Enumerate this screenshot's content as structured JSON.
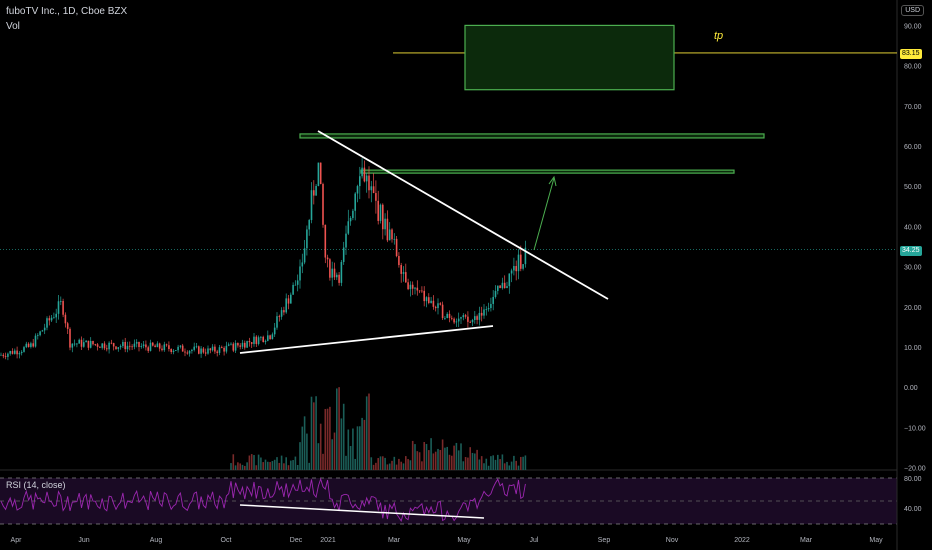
{
  "header": {
    "title": "fuboTV Inc., 1D, Cboe BZX",
    "vol_label": "Vol",
    "currency": "USD"
  },
  "rsi_panel": {
    "label": "RSI (14, close)"
  },
  "annotations": {
    "tp_label": "tp"
  },
  "colors": {
    "background": "#000000",
    "up_candle": "#26a69a",
    "down_candle": "#ef5350",
    "box_stroke": "#4caf50",
    "box_fill": "#0c2a0c",
    "trendline": "#ffffff",
    "target_line": "#ffeb3b",
    "arrow": "#4caf50",
    "rsi_line": "#9c27b0",
    "rsi_band": "#1a0a24",
    "price_marker": "#26a69a"
  },
  "chart_data": {
    "type": "candlestick",
    "price_axis": {
      "ticks": [
        90,
        80,
        70,
        60,
        50,
        40,
        30,
        20,
        10,
        0,
        -10,
        -20
      ],
      "ylim": [
        -21,
        93
      ]
    },
    "time_axis": {
      "ticks": [
        "Apr",
        "Jun",
        "Aug",
        "Oct",
        "Dec",
        "2021",
        "Mar",
        "May",
        "Jul",
        "Sep",
        "Nov",
        "2022",
        "Mar",
        "May"
      ]
    },
    "current_price": "34.25",
    "target_price": "83.15",
    "price_path": [
      [
        "Apr",
        8
      ],
      [
        "May",
        10
      ],
      [
        "May-mid",
        20
      ],
      [
        "Jun",
        11
      ],
      [
        "Aug",
        10
      ],
      [
        "Sep",
        9
      ],
      [
        "Oct",
        10
      ],
      [
        "Nov",
        13
      ],
      [
        "Dec",
        28
      ],
      [
        "Dec-end",
        55
      ],
      [
        "2021",
        30
      ],
      [
        "Jan-mid",
        28
      ],
      [
        "Feb",
        56
      ],
      [
        "Feb-mid",
        45
      ],
      [
        "Mar",
        35
      ],
      [
        "Mar-mid",
        25
      ],
      [
        "Apr",
        19
      ],
      [
        "May",
        16
      ],
      [
        "Jun",
        24
      ],
      [
        "Jul",
        34
      ]
    ],
    "rsi": {
      "levels": [
        80,
        40
      ],
      "band": [
        70,
        30
      ]
    },
    "drawings": {
      "resistance_trendline": [
        [
          "Dec-end",
          64
        ],
        [
          "Oct-next",
          21
        ]
      ],
      "support_trendline": [
        [
          "Oct",
          8
        ],
        [
          "May",
          16
        ]
      ],
      "rsi_trendline": [
        [
          "Oct",
          60
        ],
        [
          "Jun",
          38
        ]
      ],
      "target_box": {
        "top": 90,
        "bottom": 74
      },
      "zones": [
        {
          "top": 63,
          "bottom": 62
        },
        {
          "top": 54,
          "bottom": 53
        }
      ]
    }
  }
}
